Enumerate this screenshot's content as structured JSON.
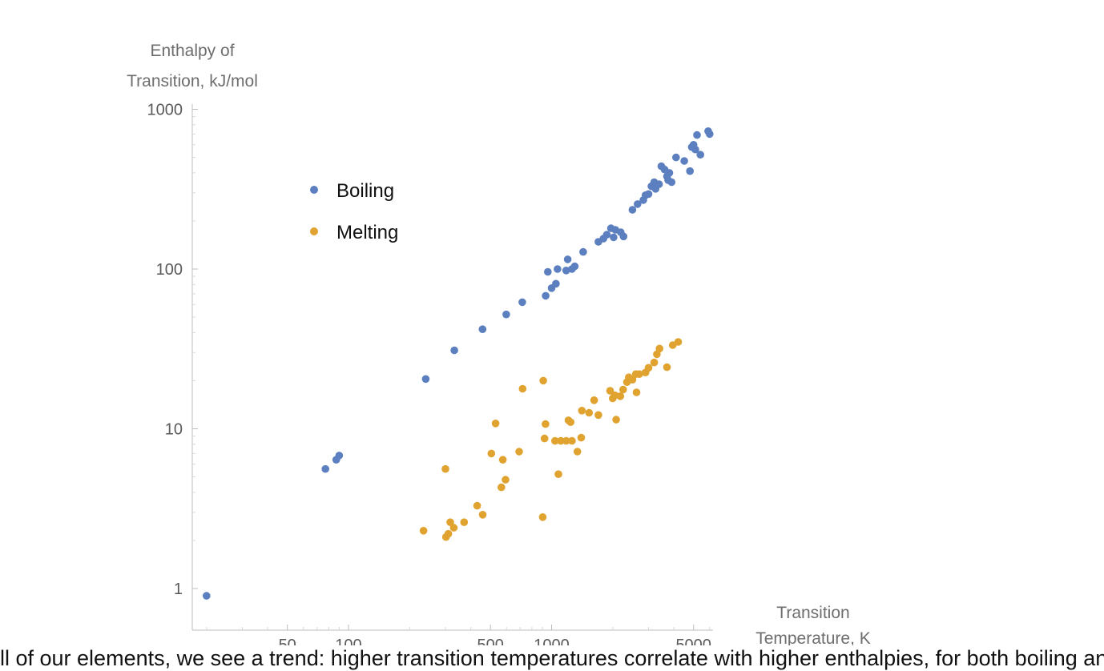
{
  "chart_data": {
    "type": "scatter",
    "x_scale": "log",
    "y_scale": "log",
    "ylabel_lines": [
      "Enthalpy of",
      "Transition, kJ/mol"
    ],
    "xlabel_lines": [
      "Transition",
      "Temperature, K"
    ],
    "xlim": [
      16,
      7000
    ],
    "ylim": [
      0.6,
      1000
    ],
    "x_ticks": [
      50,
      100,
      500,
      1000,
      5000
    ],
    "x_tick_labels": [
      "50",
      "100",
      "500",
      "1000",
      "5000"
    ],
    "y_ticks": [
      1,
      10,
      100,
      1000
    ],
    "y_tick_labels": [
      "1",
      "10",
      "100",
      "1000"
    ],
    "legend_position": "upper-left",
    "series": [
      {
        "name": "Boiling",
        "color": "#5b7fbf",
        "points": [
          [
            20,
            0.9
          ],
          [
            77,
            5.6
          ],
          [
            87,
            6.4
          ],
          [
            90,
            6.8
          ],
          [
            240,
            20.5
          ],
          [
            332,
            31
          ],
          [
            457,
            42
          ],
          [
            598,
            52
          ],
          [
            717,
            62
          ],
          [
            935,
            68
          ],
          [
            958,
            96
          ],
          [
            1000,
            76
          ],
          [
            1050,
            81
          ],
          [
            1070,
            100
          ],
          [
            1180,
            98
          ],
          [
            1200,
            115
          ],
          [
            1260,
            100
          ],
          [
            1300,
            104
          ],
          [
            1430,
            128
          ],
          [
            1700,
            148
          ],
          [
            1800,
            155
          ],
          [
            1870,
            164
          ],
          [
            1960,
            180
          ],
          [
            2020,
            158
          ],
          [
            2060,
            176
          ],
          [
            2190,
            170
          ],
          [
            2260,
            160
          ],
          [
            2500,
            235
          ],
          [
            2650,
            255
          ],
          [
            2830,
            270
          ],
          [
            2900,
            290
          ],
          [
            3000,
            295
          ],
          [
            3100,
            330
          ],
          [
            3200,
            350
          ],
          [
            3250,
            318
          ],
          [
            3380,
            340
          ],
          [
            3470,
            440
          ],
          [
            3600,
            420
          ],
          [
            3700,
            380
          ],
          [
            3750,
            360
          ],
          [
            3800,
            400
          ],
          [
            3900,
            350
          ],
          [
            4100,
            500
          ],
          [
            4500,
            475
          ],
          [
            4800,
            410
          ],
          [
            4900,
            580
          ],
          [
            5000,
            600
          ],
          [
            5100,
            560
          ],
          [
            5200,
            690
          ],
          [
            5400,
            520
          ],
          [
            5900,
            730
          ],
          [
            6000,
            700
          ]
        ]
      },
      {
        "name": "Melting",
        "color": "#e1a330",
        "points": [
          [
            234,
            2.3
          ],
          [
            302,
            2.1
          ],
          [
            300,
            5.6
          ],
          [
            310,
            2.2
          ],
          [
            317,
            2.6
          ],
          [
            330,
            2.4
          ],
          [
            371,
            2.6
          ],
          [
            430,
            3.3
          ],
          [
            458,
            2.9
          ],
          [
            505,
            7.0
          ],
          [
            530,
            10.8
          ],
          [
            566,
            4.3
          ],
          [
            575,
            6.4
          ],
          [
            593,
            4.8
          ],
          [
            692,
            7.2
          ],
          [
            720,
            17.8
          ],
          [
            904,
            2.8
          ],
          [
            910,
            20.0
          ],
          [
            923,
            8.7
          ],
          [
            933,
            10.7
          ],
          [
            1040,
            8.4
          ],
          [
            1080,
            5.2
          ],
          [
            1110,
            8.4
          ],
          [
            1180,
            8.4
          ],
          [
            1210,
            11.3
          ],
          [
            1240,
            11.0
          ],
          [
            1260,
            8.4
          ],
          [
            1340,
            7.2
          ],
          [
            1400,
            8.8
          ],
          [
            1410,
            13.0
          ],
          [
            1530,
            12.6
          ],
          [
            1620,
            15.1
          ],
          [
            1700,
            12.2
          ],
          [
            1940,
            17.3
          ],
          [
            2000,
            15.5
          ],
          [
            2050,
            16.2
          ],
          [
            2080,
            11.4
          ],
          [
            2180,
            16.0
          ],
          [
            2250,
            17.6
          ],
          [
            2350,
            19.6
          ],
          [
            2400,
            21.0
          ],
          [
            2500,
            20.3
          ],
          [
            2600,
            22.0
          ],
          [
            2620,
            16.9
          ],
          [
            2700,
            22.0
          ],
          [
            2900,
            22.5
          ],
          [
            3000,
            24.1
          ],
          [
            3200,
            26.0
          ],
          [
            3300,
            29.3
          ],
          [
            3400,
            31.8
          ],
          [
            3700,
            24.3
          ],
          [
            3950,
            33.4
          ],
          [
            4200,
            35.0
          ]
        ]
      }
    ],
    "caption_fragment": "ll of our elements, we see a trend: higher transition temperatures correlate with higher enthalpies, for both boiling and melting. Each dot is one element (blue dots"
  }
}
